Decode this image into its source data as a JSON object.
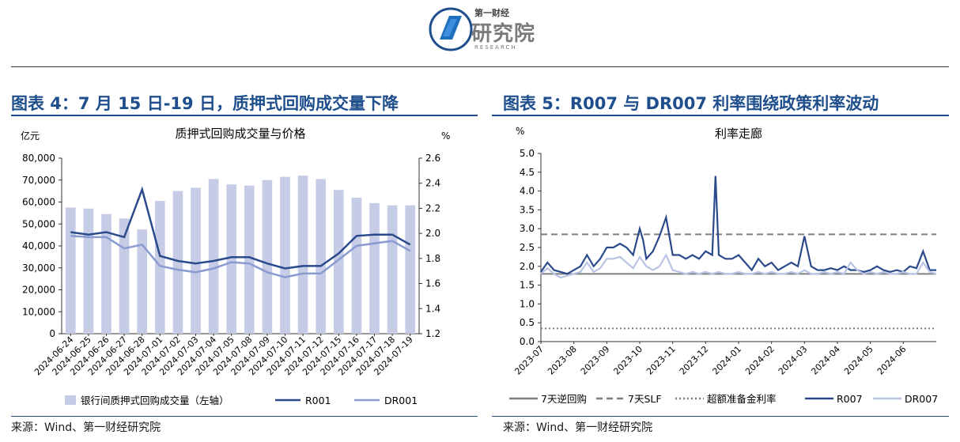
{
  "header": {
    "logo_top": "第一财经",
    "logo_main": "研究院",
    "logo_sub": "RESEARCH"
  },
  "left_panel": {
    "figure_title": "图表 4：7 月 15 日-19 日，质押式回购成交量下降",
    "source": "来源：Wind、第一财经研究院"
  },
  "right_panel": {
    "figure_title": "图表 5：R007 与 DR007 利率围绕政策利率波动",
    "source": "来源：Wind、第一财经研究院"
  },
  "chart_data": [
    {
      "type": "bar",
      "title": "质押式回购成交量与价格",
      "left_unit": "亿元",
      "right_unit": "%",
      "categories": [
        "2024-06-24",
        "2024-06-25",
        "2024-06-26",
        "2024-06-27",
        "2024-06-28",
        "2024-07-01",
        "2024-07-02",
        "2024-07-03",
        "2024-07-04",
        "2024-07-05",
        "2024-07-08",
        "2024-07-09",
        "2024-07-10",
        "2024-07-11",
        "2024-07-12",
        "2024-07-15",
        "2024-07-16",
        "2024-07-17",
        "2024-07-18",
        "2024-07-19"
      ],
      "yticks_left": [
        "0",
        "10,000",
        "20,000",
        "30,000",
        "40,000",
        "50,000",
        "60,000",
        "70,000",
        "80,000"
      ],
      "yticks_right": [
        "1.2",
        "1.4",
        "1.6",
        "1.8",
        "2.0",
        "2.2",
        "2.4",
        "2.6"
      ],
      "ylim_left": [
        0,
        80000
      ],
      "ylim_right": [
        1.2,
        2.6
      ],
      "bar_series": {
        "name": "银行间质押式回购成交量（左轴）",
        "color": "#c6cbe6",
        "values": [
          57500,
          57000,
          54500,
          52500,
          47500,
          60500,
          65000,
          66500,
          70500,
          68000,
          67500,
          70000,
          71500,
          72000,
          70500,
          65500,
          62000,
          59500,
          58500,
          58500
        ]
      },
      "line_series": [
        {
          "name": "R001",
          "color": "#2a4a8c",
          "values": [
            2.01,
            1.99,
            2.01,
            1.97,
            2.35,
            1.82,
            1.78,
            1.76,
            1.78,
            1.81,
            1.81,
            1.76,
            1.72,
            1.74,
            1.74,
            1.84,
            1.98,
            1.99,
            1.99,
            1.91
          ]
        },
        {
          "name": "DR001",
          "color": "#8a9bd1",
          "values": [
            1.98,
            1.97,
            1.97,
            1.88,
            1.91,
            1.74,
            1.71,
            1.69,
            1.72,
            1.77,
            1.76,
            1.69,
            1.65,
            1.68,
            1.68,
            1.79,
            1.9,
            1.92,
            1.94,
            1.86
          ]
        }
      ],
      "legend": {
        "bar": "银行间质押式回购成交量（左轴）",
        "line1": "R001",
        "line2": "DR001"
      }
    },
    {
      "type": "line",
      "title": "利率走廊",
      "ylabel": "%",
      "ylim": [
        0,
        5
      ],
      "yticks": [
        "0.0",
        "0.5",
        "1.0",
        "1.5",
        "2.0",
        "2.5",
        "3.0",
        "3.5",
        "4.0",
        "4.5",
        "5.0"
      ],
      "x_start": "2023-07",
      "x_end": "2024-07",
      "xticks": [
        "2023-07",
        "2023-08",
        "2023-09",
        "2023-10",
        "2023-11",
        "2023-12",
        "2024-01",
        "2024-02",
        "2024-03",
        "2024-04",
        "2024-05",
        "2024-06"
      ],
      "flat_series": [
        {
          "name": "7天逆回购",
          "color": "#7f7f7f",
          "value": 1.8,
          "dash": "solid"
        },
        {
          "name": "7天SLF",
          "color": "#7f7f7f",
          "value": 2.85,
          "dash": "dashed"
        },
        {
          "name": "超额准备金利率",
          "color": "#7f7f7f",
          "value": 0.35,
          "dash": "dotted"
        }
      ],
      "series": [
        {
          "name": "R007",
          "color": "#2a4a8c",
          "x": [
            0.0,
            0.2,
            0.4,
            0.6,
            0.8,
            1.0,
            1.2,
            1.4,
            1.6,
            1.8,
            2.0,
            2.2,
            2.4,
            2.6,
            2.8,
            3.0,
            3.1,
            3.2,
            3.4,
            3.6,
            3.8,
            4.0,
            4.2,
            4.4,
            4.6,
            4.8,
            5.0,
            5.2,
            5.3,
            5.4,
            5.6,
            5.8,
            6.0,
            6.2,
            6.4,
            6.6,
            6.8,
            7.0,
            7.2,
            7.4,
            7.6,
            7.8,
            8.0,
            8.2,
            8.4,
            8.6,
            8.8,
            9.0,
            9.2,
            9.4,
            9.6,
            9.8,
            10.0,
            10.2,
            10.4,
            10.6,
            10.8,
            11.0,
            11.2,
            11.4,
            11.6,
            11.8,
            12.0
          ],
          "y": [
            1.85,
            2.1,
            1.9,
            1.85,
            1.8,
            1.9,
            2.0,
            2.3,
            2.0,
            2.2,
            2.5,
            2.5,
            2.6,
            2.5,
            2.3,
            3.0,
            2.7,
            2.2,
            2.4,
            2.8,
            3.3,
            2.3,
            2.3,
            2.2,
            2.3,
            2.2,
            2.4,
            2.3,
            4.4,
            2.3,
            2.2,
            2.2,
            2.3,
            2.1,
            1.9,
            2.2,
            2.0,
            2.1,
            1.9,
            2.0,
            2.1,
            2.0,
            2.8,
            2.0,
            1.9,
            1.9,
            1.95,
            1.9,
            2.0,
            1.9,
            1.9,
            1.85,
            1.9,
            2.0,
            1.9,
            1.85,
            1.9,
            1.85,
            2.0,
            1.95,
            2.4,
            1.9,
            1.9
          ]
        },
        {
          "name": "DR007",
          "color": "#b9c3e3",
          "x": [
            0.0,
            0.2,
            0.4,
            0.6,
            0.8,
            1.0,
            1.2,
            1.4,
            1.6,
            1.8,
            2.0,
            2.2,
            2.4,
            2.6,
            2.8,
            3.0,
            3.2,
            3.4,
            3.6,
            3.8,
            4.0,
            4.2,
            4.4,
            4.6,
            4.8,
            5.0,
            5.2,
            5.4,
            5.6,
            5.8,
            6.0,
            6.2,
            6.4,
            6.6,
            6.8,
            7.0,
            7.2,
            7.4,
            7.6,
            7.8,
            8.0,
            8.2,
            8.4,
            8.6,
            8.8,
            9.0,
            9.2,
            9.4,
            9.6,
            9.8,
            10.0,
            10.2,
            10.4,
            10.6,
            10.8,
            11.0,
            11.2,
            11.4,
            11.6,
            11.8,
            12.0
          ],
          "y": [
            1.8,
            1.95,
            1.8,
            1.7,
            1.75,
            1.8,
            1.85,
            2.1,
            1.85,
            1.95,
            2.2,
            2.2,
            2.25,
            2.1,
            1.95,
            2.25,
            2.0,
            1.9,
            2.0,
            2.3,
            1.9,
            1.85,
            1.8,
            1.85,
            1.8,
            1.85,
            1.8,
            1.85,
            1.8,
            1.8,
            1.85,
            1.8,
            1.8,
            1.85,
            1.8,
            1.85,
            1.8,
            1.8,
            1.85,
            1.8,
            1.9,
            1.8,
            1.8,
            1.85,
            1.8,
            1.85,
            1.8,
            2.1,
            1.9,
            1.8,
            1.85,
            1.8,
            1.85,
            1.8,
            1.8,
            1.85,
            1.8,
            1.8,
            2.1,
            1.85,
            1.8
          ]
        }
      ],
      "legend": [
        "7天逆回购",
        "7天SLF",
        "超额准备金利率",
        "R007",
        "DR007"
      ]
    }
  ]
}
